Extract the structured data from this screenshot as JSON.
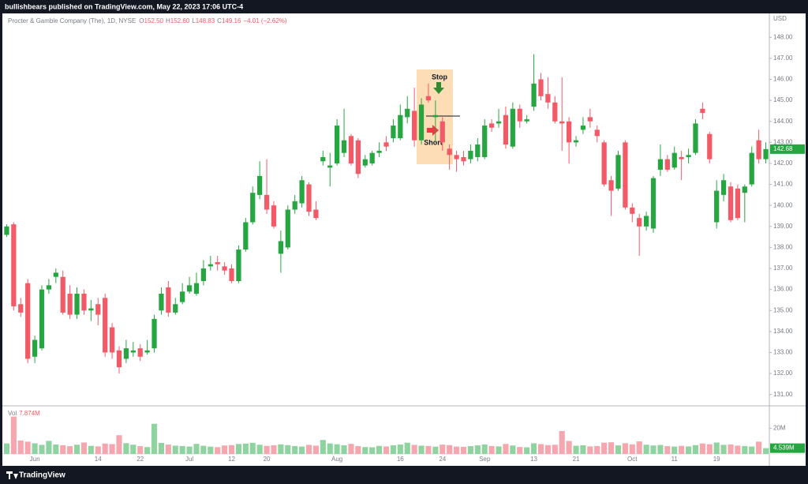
{
  "header": {
    "title": "bullishbears published on TradingView.com, May 22, 2023 17:06 UTC-4"
  },
  "footer": {
    "brand": "TradingView"
  },
  "legend": {
    "symbol": "Procter & Gamble Company (The), 1D, NYSE",
    "items": [
      {
        "key": "O",
        "value": "152.50"
      },
      {
        "key": "H",
        "value": "152.60"
      },
      {
        "key": "L",
        "value": "148.83"
      },
      {
        "key": "C",
        "value": "149.16"
      }
    ],
    "change": "−4.01 (−2.62%)"
  },
  "annotations": {
    "stop": "Stop",
    "short": "Short"
  },
  "chart_data": [
    {
      "type": "candlestick",
      "currency": "USD",
      "up_color": "#26a641",
      "down_color": "#f25a67",
      "grid": false,
      "ylim": [
        130.5,
        149.1
      ],
      "yticks": [
        {
          "value": 131,
          "label": "131.00"
        },
        {
          "value": 132,
          "label": "132.00"
        },
        {
          "value": 133,
          "label": "133.00"
        },
        {
          "value": 134,
          "label": "134.00"
        },
        {
          "value": 135,
          "label": "135.00"
        },
        {
          "value": 136,
          "label": "136.00"
        },
        {
          "value": 137,
          "label": "137.00"
        },
        {
          "value": 138,
          "label": "138.00"
        },
        {
          "value": 139,
          "label": "139.00"
        },
        {
          "value": 140,
          "label": "140.00"
        },
        {
          "value": 141,
          "label": "141.00"
        },
        {
          "value": 142,
          "label": "142.00"
        },
        {
          "value": 143,
          "label": "143.00"
        },
        {
          "value": 144,
          "label": "144.00"
        },
        {
          "value": 145,
          "label": "145.00"
        },
        {
          "value": 146,
          "label": "146.00"
        },
        {
          "value": 147,
          "label": "147.00"
        },
        {
          "value": 148,
          "label": "148.00"
        }
      ],
      "categories": [
        null,
        null,
        null,
        null,
        "Jun",
        null,
        null,
        null,
        null,
        null,
        null,
        null,
        null,
        "14",
        null,
        null,
        null,
        null,
        null,
        "22",
        null,
        null,
        null,
        null,
        null,
        null,
        "Jul",
        null,
        null,
        null,
        null,
        null,
        "12",
        null,
        null,
        null,
        null,
        "20",
        null,
        null,
        null,
        null,
        null,
        null,
        null,
        null,
        null,
        "Aug",
        null,
        null,
        null,
        null,
        null,
        null,
        null,
        null,
        "16",
        null,
        null,
        null,
        null,
        null,
        "24",
        null,
        null,
        null,
        null,
        null,
        "Sep",
        null,
        null,
        null,
        null,
        null,
        null,
        "13",
        null,
        null,
        null,
        null,
        null,
        "21",
        null,
        null,
        null,
        null,
        null,
        null,
        null,
        "Oct",
        null,
        null,
        null,
        null,
        null,
        "11",
        null,
        null,
        null,
        null,
        null,
        "19",
        null,
        null,
        null,
        null,
        null,
        null,
        null
      ],
      "open": [
        138.6,
        139.1,
        135.3,
        136.3,
        132.8,
        133.2,
        136.0,
        136.6,
        136.6,
        135.8,
        134.8,
        135.8,
        135.0,
        135.3,
        135.6,
        134.2,
        133.1,
        132.7,
        133.0,
        133.2,
        133.0,
        133.2,
        135.0,
        136.1,
        134.9,
        135.4,
        135.9,
        135.8,
        136.4,
        137.1,
        137.3,
        137.1,
        137.0,
        136.4,
        137.9,
        139.2,
        140.5,
        140.5,
        140.0,
        137.7,
        138.0,
        139.8,
        140.1,
        141.0,
        139.8,
        142.1,
        141.8,
        142.0,
        142.5,
        143.3,
        143.1,
        141.9,
        142.0,
        142.5,
        143.0,
        143.2,
        143.2,
        144.2,
        144.5,
        143.1,
        145.2,
        144.2,
        144.0,
        142.7,
        142.4,
        142.3,
        142.2,
        142.3,
        142.3,
        143.9,
        143.9,
        144.3,
        142.8,
        144.6,
        144.0,
        144.7,
        146.0,
        145.3,
        144.9,
        144.0,
        144.0,
        143.0,
        143.6,
        144.2,
        143.6,
        143.0,
        141.2,
        140.8,
        143.0,
        139.9,
        139.4,
        139.0,
        138.9,
        141.7,
        142.2,
        141.8,
        142.3,
        142.3,
        142.5,
        144.6,
        143.4,
        139.2,
        140.5,
        140.9,
        140.8,
        140.6,
        141.0,
        143.1,
        142.2
      ],
      "high": [
        139.1,
        139.2,
        135.6,
        136.5,
        133.8,
        136.2,
        136.5,
        137.0,
        136.9,
        136.2,
        136.1,
        136.0,
        135.5,
        135.6,
        135.8,
        134.4,
        133.3,
        133.6,
        133.5,
        133.4,
        133.6,
        134.8,
        136.1,
        136.4,
        135.6,
        136.3,
        136.6,
        136.8,
        137.4,
        137.6,
        137.6,
        137.3,
        137.2,
        138.1,
        139.4,
        140.9,
        142.1,
        142.2,
        140.2,
        138.8,
        140.0,
        140.5,
        141.4,
        141.1,
        140.2,
        142.6,
        142.5,
        144.1,
        144.6,
        143.4,
        143.2,
        142.4,
        142.6,
        143.0,
        143.3,
        144.1,
        144.8,
        145.2,
        145.6,
        145.1,
        145.8,
        145.0,
        144.2,
        142.9,
        142.6,
        142.6,
        142.9,
        143.2,
        144.1,
        144.1,
        144.6,
        144.7,
        144.9,
        144.8,
        144.3,
        147.2,
        146.3,
        146.1,
        145.2,
        146.1,
        144.2,
        143.3,
        144.2,
        144.6,
        143.8,
        143.1,
        141.4,
        142.6,
        143.1,
        140.1,
        139.6,
        139.7,
        141.4,
        142.9,
        142.4,
        142.8,
        142.6,
        142.7,
        144.1,
        144.9,
        143.5,
        141.2,
        141.5,
        141.1,
        141.0,
        141.0,
        142.8,
        143.6,
        143.0
      ],
      "low": [
        138.5,
        135.0,
        134.7,
        132.5,
        132.5,
        133.1,
        135.8,
        136.3,
        134.8,
        134.6,
        134.6,
        134.8,
        134.5,
        134.3,
        132.8,
        132.7,
        132.0,
        132.5,
        132.8,
        132.6,
        132.9,
        133.0,
        134.8,
        134.7,
        134.8,
        135.3,
        135.8,
        135.7,
        136.2,
        136.9,
        136.9,
        136.7,
        136.3,
        136.3,
        137.8,
        139.1,
        140.3,
        139.6,
        138.9,
        136.8,
        137.9,
        139.6,
        139.9,
        139.5,
        139.3,
        141.9,
        140.9,
        141.9,
        142.3,
        141.9,
        141.3,
        141.8,
        141.9,
        142.3,
        142.6,
        143.0,
        143.1,
        143.9,
        142.8,
        142.9,
        144.9,
        143.0,
        142.6,
        141.7,
        141.6,
        141.9,
        142.0,
        142.1,
        142.2,
        143.5,
        143.7,
        142.7,
        142.7,
        143.7,
        143.9,
        144.5,
        145.0,
        144.6,
        143.9,
        142.6,
        142.0,
        142.8,
        143.4,
        143.7,
        143.0,
        140.9,
        139.5,
        140.7,
        139.8,
        139.2,
        137.6,
        138.8,
        138.7,
        141.4,
        141.6,
        141.7,
        141.2,
        142.0,
        142.4,
        144.1,
        142.0,
        138.9,
        140.2,
        139.2,
        139.3,
        139.2,
        140.9,
        142.0,
        142.0
      ],
      "close": [
        139.0,
        135.2,
        134.9,
        132.7,
        133.6,
        136.0,
        136.2,
        136.8,
        134.9,
        134.8,
        135.8,
        135.0,
        135.1,
        134.8,
        133.0,
        133.0,
        132.3,
        133.2,
        133.1,
        132.8,
        133.1,
        134.6,
        135.8,
        134.9,
        135.3,
        135.9,
        136.2,
        136.3,
        137.0,
        137.2,
        137.2,
        136.9,
        136.4,
        137.9,
        139.2,
        140.6,
        141.4,
        139.8,
        139.0,
        138.3,
        139.8,
        140.2,
        141.2,
        139.7,
        139.4,
        142.3,
        141.9,
        143.8,
        143.1,
        142.0,
        141.5,
        142.2,
        142.5,
        142.6,
        142.8,
        143.8,
        144.3,
        144.6,
        143.1,
        144.8,
        145.0,
        144.3,
        143.0,
        142.4,
        142.2,
        142.1,
        142.6,
        142.9,
        143.8,
        143.7,
        144.0,
        142.9,
        144.6,
        144.0,
        144.1,
        145.8,
        145.2,
        144.9,
        144.0,
        143.9,
        143.0,
        143.1,
        143.8,
        144.0,
        143.3,
        141.0,
        140.7,
        142.4,
        139.9,
        139.6,
        139.0,
        139.5,
        141.3,
        142.2,
        141.7,
        142.5,
        142.2,
        142.4,
        143.9,
        144.4,
        142.2,
        140.7,
        141.2,
        139.3,
        139.4,
        140.9,
        142.5,
        142.2,
        142.68
      ]
    },
    {
      "type": "volume",
      "name": "Vol",
      "legend_value": "7.874M",
      "up_color": "#8fd3a0",
      "down_color": "#f6a6ae",
      "ylim": [
        0,
        35
      ],
      "yticks": [
        {
          "value": 20,
          "label": "20M"
        }
      ],
      "last_label": "4.539M",
      "values": [
        8.2,
        29.1,
        10.5,
        9.6,
        8.3,
        7.1,
        10.2,
        7.4,
        6.8,
        6.1,
        7.2,
        8.9,
        6.3,
        5.9,
        8.1,
        7.7,
        14.6,
        8.4,
        7.2,
        6.1,
        5.4,
        23.5,
        8.6,
        7.3,
        6.5,
        6.2,
        5.8,
        7.9,
        6.4,
        5.7,
        5.3,
        6.6,
        6.9,
        7.8,
        8.1,
        8.7,
        7.2,
        6.3,
        6.8,
        7.5,
        6.9,
        6.2,
        5.8,
        7.1,
        6.5,
        10.9,
        8.2,
        7.6,
        6.8,
        7.9,
        6.1,
        5.4,
        5.2,
        6.3,
        5.9,
        6.8,
        7.4,
        8.8,
        7.1,
        6.5,
        6.2,
        5.7,
        7.3,
        6.9,
        5.8,
        5.6,
        6.1,
        6.7,
        7.4,
        6.2,
        5.9,
        7.8,
        6.6,
        5.5,
        5.2,
        8.3,
        7.7,
        6.9,
        7.2,
        17.9,
        10.1,
        6.4,
        6.8,
        5.9,
        6.2,
        8.8,
        9.1,
        6.7,
        8.4,
        7.5,
        9.8,
        7.2,
        6.6,
        7.0,
        6.1,
        5.8,
        6.3,
        5.9,
        6.9,
        8.2,
        7.6,
        8.9,
        7.1,
        7.4,
        6.5,
        6.2,
        5.8,
        9.6,
        4.539
      ]
    }
  ]
}
